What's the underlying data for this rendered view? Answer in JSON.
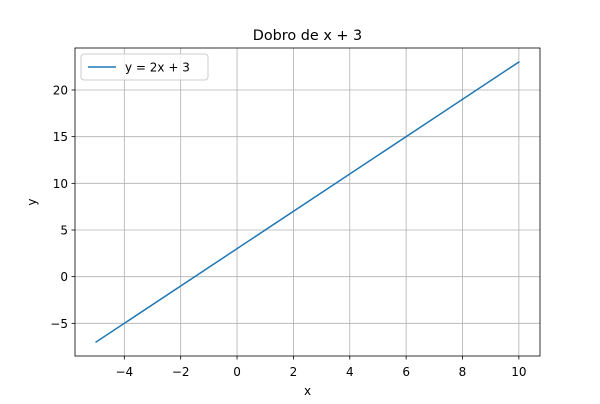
{
  "chart_data": {
    "type": "line",
    "title": "Dobro de x  + 3",
    "xlabel": "x",
    "ylabel": "y",
    "xlim": [
      -5.75,
      10.75
    ],
    "ylim": [
      -8.5,
      24.5
    ],
    "xticks": [
      -4,
      -2,
      0,
      2,
      4,
      6,
      8,
      10
    ],
    "yticks": [
      -5,
      0,
      5,
      10,
      15,
      20
    ],
    "xtick_labels": [
      "−4",
      "−2",
      "0",
      "2",
      "4",
      "6",
      "8",
      "10"
    ],
    "ytick_labels": [
      "−5",
      "0",
      "5",
      "10",
      "15",
      "20"
    ],
    "grid": true,
    "legend_position": "upper-left",
    "series": [
      {
        "name": "y = 2x + 3",
        "color": "#1f77b4",
        "x": [
          -5,
          10
        ],
        "y": [
          -7,
          23
        ]
      }
    ]
  }
}
